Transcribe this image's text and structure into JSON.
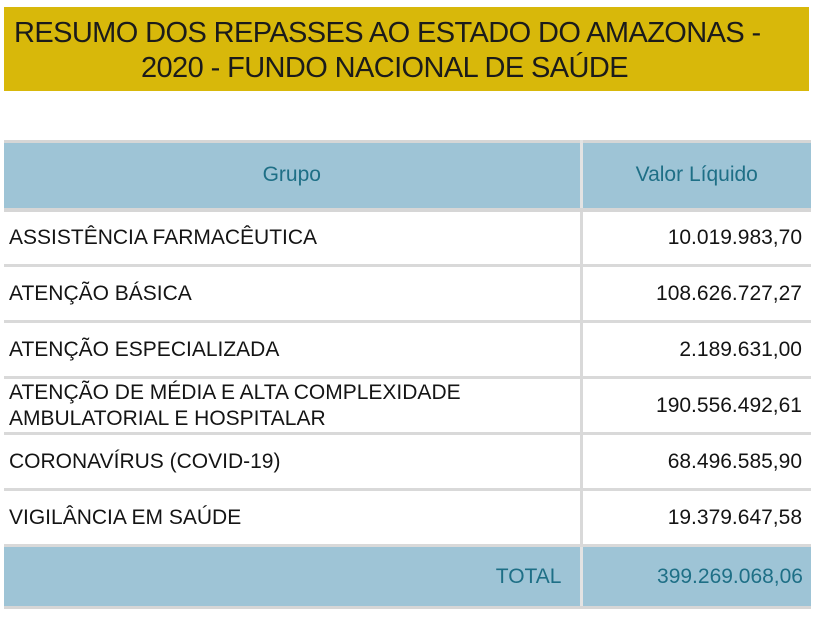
{
  "title": {
    "line1": "RESUMO DOS REPASSES AO ESTADO DO AMAZONAS -",
    "line2": "2020 - FUNDO NACIONAL DE SAÚDE",
    "background": "#d8b80a"
  },
  "table": {
    "header": {
      "group": "Grupo",
      "value": "Valor Líquido",
      "background": "#9ec4d6",
      "text_color": "#1e6f86"
    },
    "rows": [
      {
        "group": "ASSISTÊNCIA FARMACÊUTICA",
        "value": "10.019.983,70"
      },
      {
        "group": "ATENÇÃO BÁSICA",
        "value": "108.626.727,27"
      },
      {
        "group": "ATENÇÃO ESPECIALIZADA",
        "value": "2.189.631,00"
      },
      {
        "group_line1": "ATENÇÃO DE MÉDIA E ALTA COMPLEXIDADE",
        "group_line2": "AMBULATORIAL E HOSPITALAR",
        "value": "190.556.492,61"
      },
      {
        "group": "CORONAVÍRUS (COVID-19)",
        "value": "68.496.585,90"
      },
      {
        "group": "VIGILÂNCIA EM SAÚDE",
        "value": "19.379.647,58"
      }
    ],
    "total": {
      "label": "TOTAL",
      "value": "399.269.068,06"
    }
  }
}
